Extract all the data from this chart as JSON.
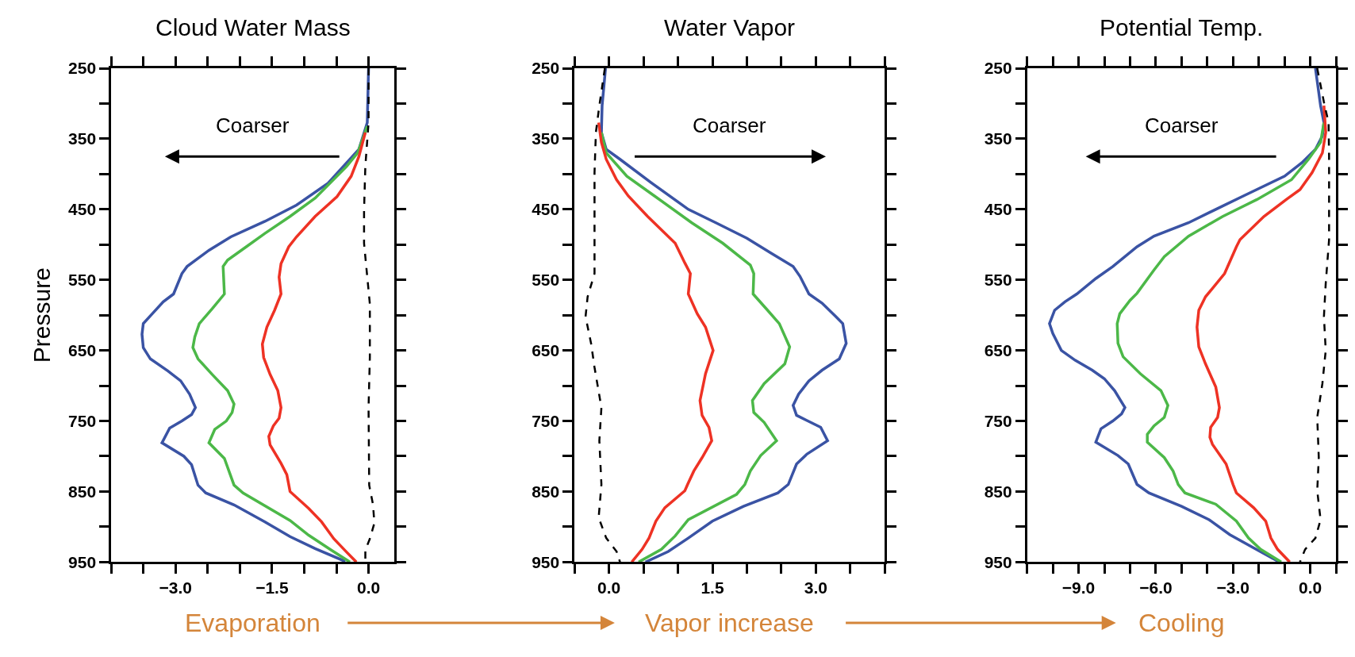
{
  "chart_data": [
    {
      "type": "line",
      "title": "Cloud Water Mass",
      "ylabel": "Pressure",
      "annotations": [
        "Coarser",
        "Evaporation"
      ],
      "xlim": [
        -4.0,
        0.4
      ],
      "xticks": [
        {
          "value": -4.0,
          "label": null
        },
        {
          "value": -3.5,
          "label": null
        },
        {
          "value": -3.0,
          "label": "−3.0"
        },
        {
          "value": -2.5,
          "label": null
        },
        {
          "value": -2.0,
          "label": null
        },
        {
          "value": -1.5,
          "label": "−1.5"
        },
        {
          "value": -1.0,
          "label": null
        },
        {
          "value": -0.5,
          "label": null
        },
        {
          "value": 0.0,
          "label": "0.0"
        }
      ],
      "ylim": [
        950,
        250
      ],
      "yticks": [
        250,
        {
          "value": 300,
          "label": null
        },
        350,
        {
          "value": 400,
          "label": null
        },
        450,
        {
          "value": 500,
          "label": null
        },
        550,
        {
          "value": 600,
          "label": null
        },
        650,
        {
          "value": 700,
          "label": null
        },
        750,
        {
          "value": 800,
          "label": null
        },
        850,
        {
          "value": 900,
          "label": null
        },
        950
      ],
      "series": [
        {
          "color": "#3a53a4",
          "x": [
            0,
            -0.02,
            -0.15,
            -0.29,
            -0.63,
            -1.12,
            -1.61,
            -2.14,
            -2.48,
            -2.82,
            -2.9,
            -3.03,
            -3.19,
            -3.36,
            -3.5,
            -3.52,
            -3.5,
            -3.39,
            -3.12,
            -2.92,
            -2.78,
            -2.69,
            -2.75,
            -2.9,
            -3.09,
            -3.21,
            -2.87,
            -2.75,
            -2.65,
            -2.53,
            -2.09,
            -1.61,
            -1.22,
            -0.83,
            -0.39,
            -0.37
          ],
          "values": [
            250,
            327,
            365,
            379,
            413,
            444,
            467,
            489,
            508,
            531,
            541,
            570,
            581,
            598,
            612,
            627,
            646,
            662,
            679,
            693,
            712,
            731,
            741,
            750,
            760,
            781,
            800,
            812,
            841,
            852,
            869,
            893,
            914,
            931,
            948,
            950
          ]
        },
        {
          "color": "#4cb848",
          "x": [
            -0.02,
            -0.17,
            -0.34,
            -0.83,
            -1.22,
            -1.61,
            -1.9,
            -2.19,
            -2.26,
            -2.24,
            -2.43,
            -2.63,
            -2.7,
            -2.73,
            -2.65,
            -2.43,
            -2.19,
            -2.09,
            -2.12,
            -2.21,
            -2.39,
            -2.48,
            -2.24,
            -2.09,
            -1.95,
            -1.22,
            -0.93,
            -0.58,
            -0.29
          ],
          "values": [
            332,
            370,
            389,
            434,
            460,
            484,
            503,
            522,
            531,
            570,
            591,
            612,
            631,
            646,
            662,
            684,
            707,
            726,
            738,
            750,
            762,
            781,
            803,
            841,
            852,
            891,
            912,
            933,
            950
          ]
        },
        {
          "color": "#ee3224",
          "x": [
            -0.05,
            -0.15,
            -0.27,
            -0.49,
            -0.83,
            -1.12,
            -1.24,
            -1.36,
            -1.39,
            -1.36,
            -1.46,
            -1.58,
            -1.65,
            -1.63,
            -1.53,
            -1.41,
            -1.36,
            -1.39,
            -1.48,
            -1.55,
            -1.53,
            -1.36,
            -1.27,
            -1.22,
            -0.93,
            -0.73,
            -0.54,
            -0.34,
            -0.19
          ],
          "values": [
            341,
            375,
            403,
            432,
            460,
            489,
            503,
            527,
            546,
            570,
            593,
            617,
            641,
            660,
            684,
            707,
            731,
            746,
            757,
            772,
            784,
            810,
            826,
            850,
            874,
            893,
            917,
            936,
            950
          ]
        },
        {
          "color": "#000000",
          "line_style": "dashed",
          "x": [
            0,
            0,
            -0.05,
            -0.07,
            -0.07,
            -0.02,
            0.02,
            0.02,
            0,
            0.01,
            0.07,
            0.09,
            0.02,
            -0.05,
            -0.05
          ],
          "values": [
            250,
            327,
            389,
            451,
            498,
            546,
            584,
            660,
            731,
            841,
            869,
            895,
            917,
            933,
            950
          ]
        }
      ]
    },
    {
      "type": "line",
      "title": "Water Vapor",
      "annotations": [
        "Coarser",
        "Vapor increase"
      ],
      "xlim": [
        -0.5,
        4.0
      ],
      "xticks": [
        {
          "value": -0.5,
          "label": null
        },
        {
          "value": 0.0,
          "label": "0.0"
        },
        {
          "value": 0.5,
          "label": null
        },
        {
          "value": 1.0,
          "label": null
        },
        {
          "value": 1.5,
          "label": "1.5"
        },
        {
          "value": 2.0,
          "label": null
        },
        {
          "value": 2.5,
          "label": null
        },
        {
          "value": 3.0,
          "label": "3.0"
        },
        {
          "value": 3.5,
          "label": null
        },
        {
          "value": 4.0,
          "label": null
        }
      ],
      "ylim": [
        950,
        250
      ],
      "yticks": [
        250,
        {
          "value": 300,
          "label": null
        },
        350,
        {
          "value": 400,
          "label": null
        },
        450,
        {
          "value": 500,
          "label": null
        },
        550,
        {
          "value": 600,
          "label": null
        },
        650,
        {
          "value": 700,
          "label": null
        },
        750,
        {
          "value": 800,
          "label": null
        },
        850,
        {
          "value": 900,
          "label": null
        },
        950
      ],
      "series": [
        {
          "color": "#3a53a4",
          "x": [
            -0.05,
            -0.1,
            -0.11,
            -0.04,
            0.16,
            0.61,
            1.15,
            1.55,
            2.0,
            2.35,
            2.67,
            2.77,
            2.9,
            3.09,
            3.29,
            3.39,
            3.44,
            3.34,
            3.09,
            2.9,
            2.75,
            2.67,
            2.72,
            3.07,
            3.17,
            2.87,
            2.72,
            2.6,
            2.45,
            1.95,
            1.5,
            1.15,
            0.86,
            0.53
          ],
          "values": [
            250,
            303,
            341,
            365,
            379,
            412,
            450,
            469,
            491,
            512,
            531,
            545,
            570,
            583,
            602,
            612,
            640,
            662,
            678,
            693,
            712,
            728,
            742,
            759,
            778,
            797,
            811,
            840,
            852,
            871,
            892,
            916,
            935,
            950
          ]
        },
        {
          "color": "#4cb848",
          "x": [
            -0.11,
            -0.04,
            0.26,
            0.66,
            1.2,
            1.65,
            2.05,
            2.1,
            2.09,
            2.3,
            2.47,
            2.62,
            2.55,
            2.25,
            2.08,
            2.1,
            2.25,
            2.43,
            2.2,
            2.05,
            1.97,
            1.85,
            1.15,
            0.96,
            0.76,
            0.43
          ],
          "values": [
            341,
            370,
            403,
            431,
            469,
            498,
            529,
            541,
            570,
            593,
            612,
            645,
            669,
            697,
            721,
            738,
            752,
            778,
            799,
            821,
            840,
            854,
            890,
            913,
            932,
            950
          ]
        },
        {
          "color": "#ee3224",
          "x": [
            -0.15,
            -0.11,
            -0.04,
            0.11,
            0.28,
            0.56,
            0.96,
            1.1,
            1.18,
            1.15,
            1.28,
            1.4,
            1.51,
            1.4,
            1.32,
            1.35,
            1.45,
            1.49,
            1.35,
            1.23,
            1.14,
            1.1,
            0.81,
            0.68,
            0.58,
            0.48,
            0.33
          ],
          "values": [
            327,
            355,
            379,
            408,
            431,
            460,
            498,
            526,
            541,
            570,
            598,
            617,
            650,
            683,
            721,
            742,
            759,
            778,
            802,
            821,
            840,
            849,
            873,
            892,
            916,
            932,
            950
          ]
        },
        {
          "color": "#000000",
          "line_style": "dashed",
          "x": [
            -0.06,
            -0.14,
            -0.19,
            -0.21,
            -0.21,
            -0.21,
            -0.31,
            -0.34,
            -0.26,
            -0.21,
            -0.11,
            -0.14,
            -0.11,
            -0.15,
            -0.04,
            0.11,
            0.16
          ],
          "values": [
            250,
            303,
            341,
            398,
            493,
            541,
            574,
            602,
            640,
            674,
            731,
            778,
            840,
            887,
            916,
            935,
            950
          ]
        }
      ]
    },
    {
      "type": "line",
      "title": "Potential Temp.",
      "annotations": [
        "Coarser",
        "Cooling"
      ],
      "xlim": [
        -11,
        1
      ],
      "xticks": [
        {
          "value": -11,
          "label": null
        },
        {
          "value": -10,
          "label": null
        },
        {
          "value": -9,
          "label": "−9.0"
        },
        {
          "value": -8,
          "label": null
        },
        {
          "value": -7,
          "label": null
        },
        {
          "value": -6,
          "label": "−6.0"
        },
        {
          "value": -5,
          "label": null
        },
        {
          "value": -4,
          "label": null
        },
        {
          "value": -3,
          "label": "−3.0"
        },
        {
          "value": -2,
          "label": null
        },
        {
          "value": -1,
          "label": null
        },
        {
          "value": 0,
          "label": "0.0"
        },
        {
          "value": 1,
          "label": null
        }
      ],
      "ylim": [
        950,
        250
      ],
      "yticks": [
        250,
        {
          "value": 300,
          "label": null
        },
        350,
        {
          "value": 400,
          "label": null
        },
        450,
        {
          "value": 500,
          "label": null
        },
        550,
        {
          "value": 600,
          "label": null
        },
        650,
        {
          "value": 700,
          "label": null
        },
        750,
        {
          "value": 800,
          "label": null
        },
        850,
        {
          "value": 900,
          "label": null
        },
        950
      ],
      "series": [
        {
          "color": "#3a53a4",
          "x": [
            0.2,
            0.4,
            0.53,
            0.47,
            0.2,
            -0.33,
            -1.0,
            -2.6,
            -3.67,
            -4.73,
            -6.07,
            -6.73,
            -7.67,
            -8.33,
            -9.07,
            -9.53,
            -9.93,
            -10.13,
            -10.0,
            -9.67,
            -9.13,
            -8.47,
            -8.0,
            -7.6,
            -7.2,
            -7.33,
            -7.67,
            -8.13,
            -8.33,
            -7.47,
            -7.07,
            -6.73,
            -6.27,
            -5.0,
            -3.93,
            -3.13,
            -2.2,
            -1.2
          ],
          "values": [
            250,
            303,
            327,
            346,
            365,
            384,
            403,
            431,
            450,
            469,
            488,
            503,
            531,
            548,
            570,
            581,
            593,
            612,
            626,
            650,
            664,
            678,
            690,
            707,
            731,
            740,
            750,
            761,
            780,
            799,
            811,
            840,
            852,
            871,
            890,
            911,
            930,
            950
          ]
        },
        {
          "color": "#4cb848",
          "x": [
            0.53,
            0.4,
            -0.07,
            -0.73,
            -2.07,
            -3.4,
            -4.73,
            -5.67,
            -6.07,
            -6.73,
            -7.0,
            -7.4,
            -7.5,
            -7.47,
            -7.27,
            -6.6,
            -5.8,
            -5.53,
            -5.67,
            -6.07,
            -6.33,
            -6.33,
            -5.67,
            -5.33,
            -5.13,
            -4.87,
            -3.67,
            -2.87,
            -2.4,
            -1.93,
            -1.13
          ],
          "values": [
            327,
            355,
            379,
            408,
            436,
            460,
            488,
            517,
            536,
            569,
            579,
            598,
            612,
            640,
            659,
            683,
            707,
            728,
            745,
            757,
            769,
            780,
            802,
            821,
            840,
            852,
            868,
            892,
            916,
            932,
            950
          ]
        },
        {
          "color": "#ee3224",
          "x": [
            0.53,
            0.6,
            0.47,
            0.07,
            -0.4,
            -0.93,
            -1.8,
            -2.73,
            -2.87,
            -3.33,
            -4.07,
            -4.33,
            -4.4,
            -4.33,
            -4.07,
            -3.67,
            -3.53,
            -3.6,
            -3.87,
            -3.9,
            -3.8,
            -3.27,
            -3.0,
            -2.87,
            -2.2,
            -1.73,
            -1.53,
            -1.27,
            -0.8
          ],
          "values": [
            303,
            341,
            370,
            398,
            422,
            436,
            460,
            493,
            503,
            541,
            574,
            593,
            617,
            645,
            669,
            702,
            731,
            745,
            759,
            773,
            783,
            811,
            840,
            852,
            873,
            892,
            916,
            932,
            950
          ]
        },
        {
          "color": "#000000",
          "line_style": "dashed",
          "x": [
            0.27,
            0.53,
            0.71,
            0.73,
            0.73,
            0.6,
            0.53,
            0.6,
            0.47,
            0.27,
            0.33,
            0.27,
            0.4,
            0.2,
            -0.2,
            -0.4
          ],
          "values": [
            250,
            298,
            327,
            374,
            493,
            555,
            602,
            650,
            697,
            745,
            802,
            849,
            890,
            916,
            932,
            950
          ]
        }
      ]
    }
  ]
}
